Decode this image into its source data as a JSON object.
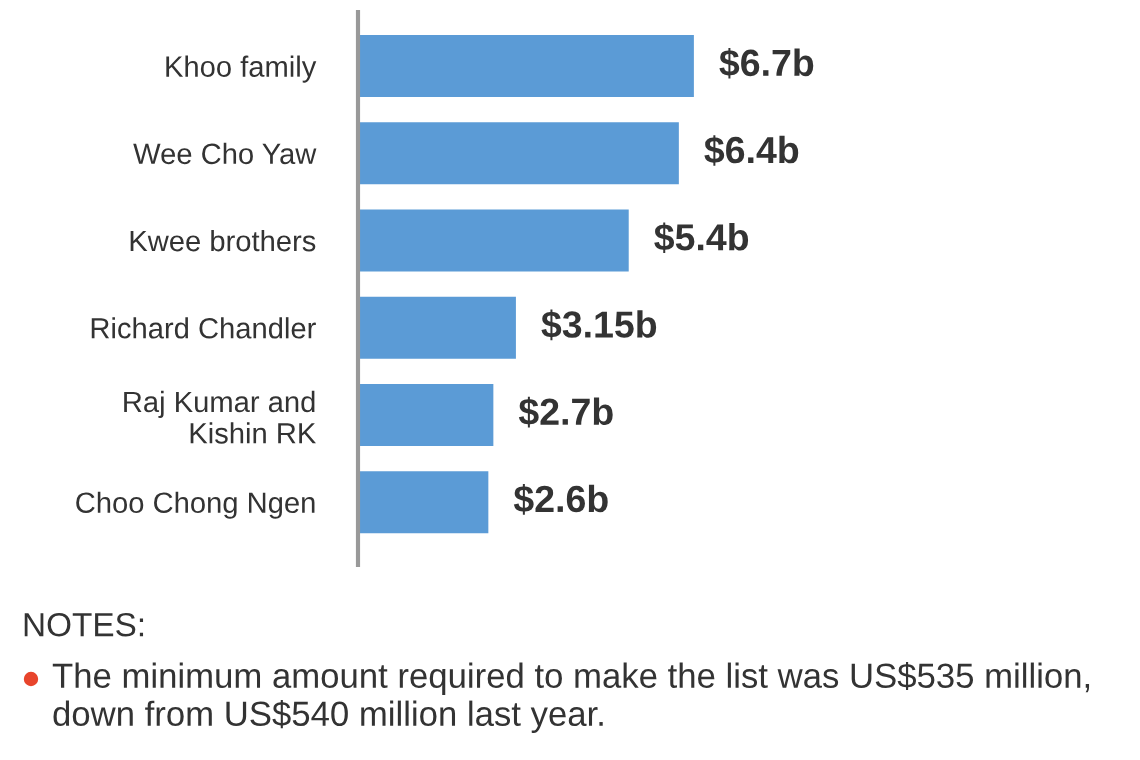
{
  "chart_data": {
    "type": "bar",
    "orientation": "horizontal",
    "categories": [
      "Khoo family",
      "Wee Cho Yaw",
      "Kwee brothers",
      "Richard Chandler",
      "Raj Kumar and\nKishin RK",
      "Choo Chong Ngen"
    ],
    "values": [
      6.7,
      6.4,
      5.4,
      3.15,
      2.7,
      2.6
    ],
    "value_labels": [
      "$6.7b",
      "$6.4b",
      "$5.4b",
      "$3.15b",
      "$2.7b",
      "$2.6b"
    ],
    "color": "#5b9bd6",
    "tick_labels": "y",
    "annotations": [
      "NOTES:",
      "The minimum amount required to make the list was US$535 million, down from US$540 million last year."
    ]
  }
}
